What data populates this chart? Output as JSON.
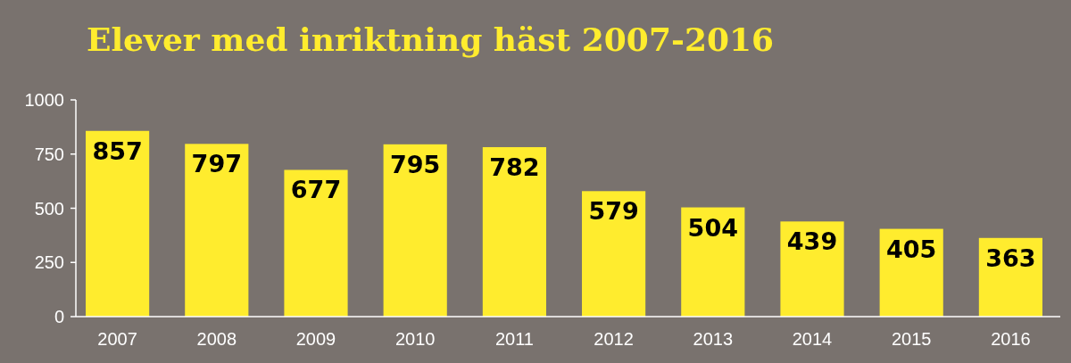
{
  "chart_data": {
    "type": "bar",
    "title": "Elever med inriktning häst 2007-2016",
    "categories": [
      "2007",
      "2008",
      "2009",
      "2010",
      "2011",
      "2012",
      "2013",
      "2014",
      "2015",
      "2016"
    ],
    "values": [
      857,
      797,
      677,
      795,
      782,
      579,
      504,
      439,
      405,
      363
    ],
    "color": "#ffec2e",
    "ylim": [
      0,
      1000
    ],
    "yticks": [
      0,
      250,
      500,
      750,
      1000
    ],
    "grid": false,
    "data_labels": true
  }
}
